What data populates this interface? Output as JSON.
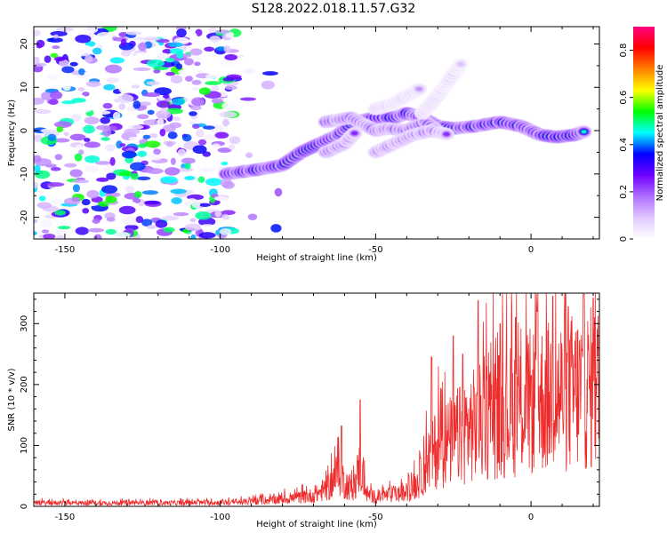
{
  "title": "S128.2022.018.11.57.G32",
  "chart_data": [
    {
      "type": "heatmap",
      "xlabel": "Height of straight line (km)",
      "ylabel": "Frequency (Hz)",
      "xlim": [
        -160,
        22
      ],
      "ylim": [
        -25,
        24
      ],
      "xticks": [
        -150,
        -100,
        -50,
        0
      ],
      "yticks": [
        -20,
        -10,
        0,
        10,
        20
      ],
      "colorbar": {
        "label": "Normalized spectral amplitude",
        "range": [
          0.0,
          0.9
        ],
        "ticks": [
          0.0,
          0.2,
          0.4,
          0.6,
          0.8
        ],
        "colors": [
          "#ffffff",
          "#e0c8ff",
          "#b070ff",
          "#7000ff",
          "#0000ff",
          "#00ffff",
          "#00ff00",
          "#ffff00",
          "#ff8000",
          "#ff0000",
          "#ff0080"
        ]
      },
      "ridges": [
        {
          "points": [
            [
              -98,
              -10
            ],
            [
              -88,
              -9
            ],
            [
              -80,
              -8
            ],
            [
              -74,
              -5
            ],
            [
              -68,
              -3
            ],
            [
              -62,
              -1
            ],
            [
              -57,
              2
            ],
            [
              -50,
              3
            ],
            [
              -44,
              3
            ],
            [
              -40,
              4
            ],
            [
              -35,
              3
            ],
            [
              -30,
              1
            ],
            [
              -25,
              0.5
            ],
            [
              -18,
              1
            ],
            [
              -10,
              2
            ],
            [
              -3,
              1
            ],
            [
              3,
              -1
            ],
            [
              8,
              -1.5
            ],
            [
              14,
              -1
            ],
            [
              18,
              0
            ]
          ],
          "amplitude": 0.85
        },
        {
          "points": [
            [
              -66,
              2
            ],
            [
              -58,
              3
            ],
            [
              -50,
              0
            ],
            [
              -46,
              0.5
            ],
            [
              -40,
              0
            ],
            [
              -34,
              2
            ],
            [
              -30,
              0
            ]
          ],
          "amplitude": 0.5
        },
        {
          "points": [
            [
              -50,
              -5
            ],
            [
              -44,
              -3
            ],
            [
              -38,
              -1
            ],
            [
              -32,
              0
            ],
            [
              -26,
              -1
            ]
          ],
          "amplitude": 0.4
        },
        {
          "points": [
            [
              -66,
              -5
            ],
            [
              -60,
              -3
            ],
            [
              -56,
              0
            ]
          ],
          "amplitude": 0.4
        },
        {
          "points": [
            [
              -50,
              5
            ],
            [
              -45,
              6
            ],
            [
              -40,
              8
            ],
            [
              -35,
              10
            ]
          ],
          "amplitude": 0.18
        },
        {
          "points": [
            [
              -35,
              4
            ],
            [
              -30,
              8
            ],
            [
              -26,
              12
            ],
            [
              -22,
              16
            ]
          ],
          "amplitude": 0.15
        }
      ],
      "noise": {
        "region_x": [
          -160,
          -95
        ],
        "amplitude": 0.55
      }
    },
    {
      "type": "line",
      "xlabel": "Height of straight line (km)",
      "ylabel": "SNR (10 * v/v)",
      "xlim": [
        -160,
        22
      ],
      "ylim": [
        0,
        350
      ],
      "xticks": [
        -150,
        -100,
        -50,
        0
      ],
      "yticks": [
        0,
        100,
        200,
        300
      ],
      "color": "#ee2a2a",
      "envelope": [
        [
          -160,
          8
        ],
        [
          -120,
          8
        ],
        [
          -95,
          9
        ],
        [
          -85,
          14
        ],
        [
          -75,
          20
        ],
        [
          -70,
          25
        ],
        [
          -65,
          45
        ],
        [
          -62,
          80
        ],
        [
          -60,
          55
        ],
        [
          -57,
          40
        ],
        [
          -55,
          100
        ],
        [
          -53,
          30
        ],
        [
          -50,
          20
        ],
        [
          -45,
          28
        ],
        [
          -40,
          30
        ],
        [
          -36,
          60
        ],
        [
          -33,
          110
        ],
        [
          -30,
          140
        ],
        [
          -25,
          155
        ],
        [
          -20,
          185
        ],
        [
          -15,
          200
        ],
        [
          -10,
          220
        ],
        [
          -5,
          225
        ],
        [
          0,
          245
        ],
        [
          5,
          255
        ],
        [
          10,
          262
        ],
        [
          15,
          270
        ],
        [
          22,
          280
        ]
      ],
      "peaks": [
        [
          -61,
          132
        ],
        [
          -55,
          175
        ],
        [
          -32,
          245
        ],
        [
          -25,
          280
        ],
        [
          -22,
          250
        ],
        [
          -17,
          338
        ],
        [
          -10,
          300
        ],
        [
          -5,
          310
        ],
        [
          2,
          320
        ],
        [
          7,
          345
        ],
        [
          12,
          328
        ],
        [
          17,
          348
        ],
        [
          20,
          342
        ]
      ]
    }
  ]
}
